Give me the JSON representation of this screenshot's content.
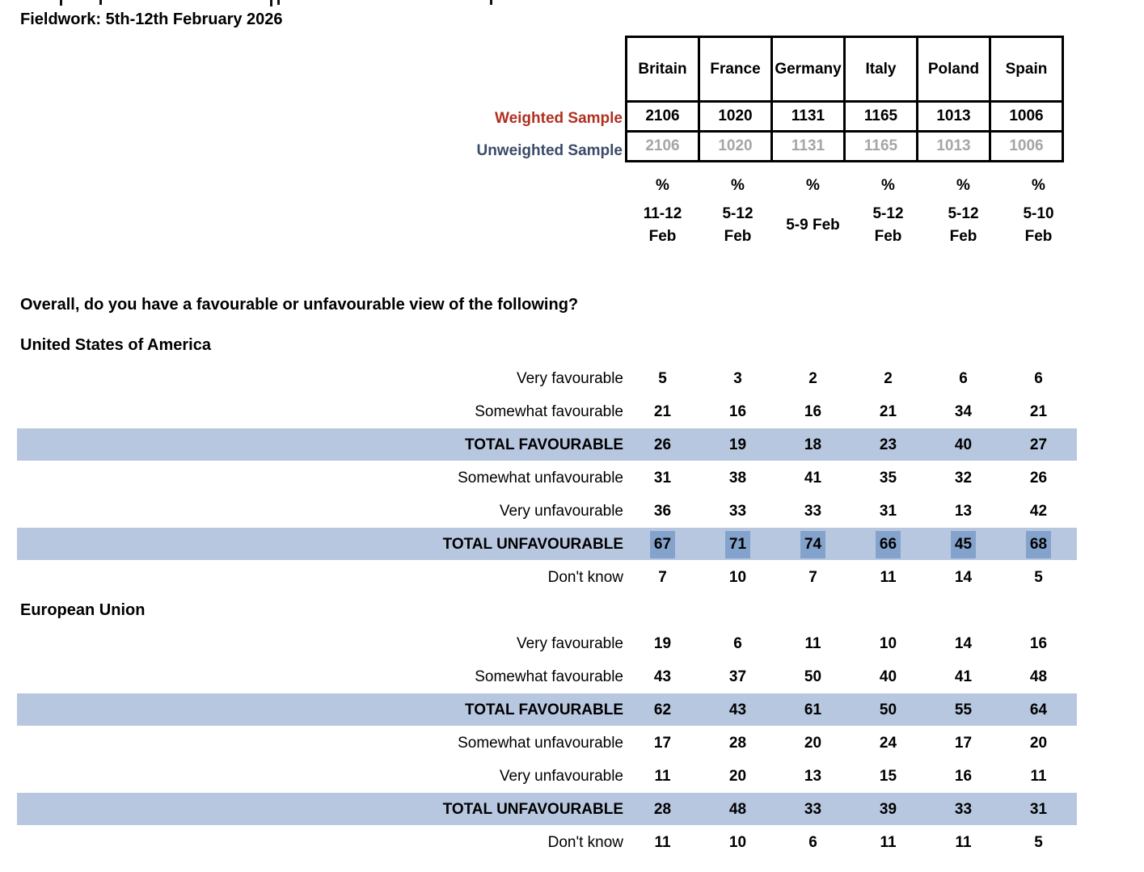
{
  "header": {
    "fieldwork": "Fieldwork: 5th-12th February 2026"
  },
  "sample_table": {
    "columns": [
      "Britain",
      "France",
      "Germany",
      "Italy",
      "Poland",
      "Spain"
    ],
    "weighted_label": "Weighted Sample",
    "unweighted_label": "Unweighted Sample",
    "weighted": [
      "2106",
      "1020",
      "1131",
      "1165",
      "1013",
      "1006"
    ],
    "unweighted": [
      "2106",
      "1020",
      "1131",
      "1165",
      "1013",
      "1006"
    ],
    "percent_row": [
      "%",
      "%",
      "%",
      "%",
      "%",
      "%"
    ],
    "dates": [
      "11-12 Feb",
      "5-12 Feb",
      "5-9 Feb",
      "5-12 Feb",
      "5-12 Feb",
      "5-10 Feb"
    ],
    "dates_two_line": [
      true,
      true,
      false,
      true,
      true,
      true
    ]
  },
  "question": "Overall, do you have a favourable or unfavourable view of the following?",
  "sections": [
    {
      "title": "United States of America",
      "rows": [
        {
          "label": "Very favourable",
          "values": [
            "5",
            "3",
            "2",
            "2",
            "6",
            "6"
          ],
          "type": "normal"
        },
        {
          "label": "Somewhat favourable",
          "values": [
            "21",
            "16",
            "16",
            "21",
            "34",
            "21"
          ],
          "type": "normal"
        },
        {
          "label": "TOTAL FAVOURABLE",
          "values": [
            "26",
            "19",
            "18",
            "23",
            "40",
            "27"
          ],
          "type": "total"
        },
        {
          "label": "Somewhat unfavourable",
          "values": [
            "31",
            "38",
            "41",
            "35",
            "32",
            "26"
          ],
          "type": "normal"
        },
        {
          "label": "Very unfavourable",
          "values": [
            "36",
            "33",
            "33",
            "31",
            "13",
            "42"
          ],
          "type": "normal"
        },
        {
          "label": "TOTAL UNFAVOURABLE",
          "values": [
            "67",
            "71",
            "74",
            "66",
            "45",
            "68"
          ],
          "type": "total-highlight"
        },
        {
          "label": "Don't know",
          "values": [
            "7",
            "10",
            "7",
            "11",
            "14",
            "5"
          ],
          "type": "normal"
        }
      ]
    },
    {
      "title": "European Union",
      "rows": [
        {
          "label": "Very favourable",
          "values": [
            "19",
            "6",
            "11",
            "10",
            "14",
            "16"
          ],
          "type": "normal"
        },
        {
          "label": "Somewhat favourable",
          "values": [
            "43",
            "37",
            "50",
            "40",
            "41",
            "48"
          ],
          "type": "normal"
        },
        {
          "label": "TOTAL FAVOURABLE",
          "values": [
            "62",
            "43",
            "61",
            "50",
            "55",
            "64"
          ],
          "type": "total"
        },
        {
          "label": "Somewhat unfavourable",
          "values": [
            "17",
            "28",
            "20",
            "24",
            "17",
            "20"
          ],
          "type": "normal"
        },
        {
          "label": "Very unfavourable",
          "values": [
            "11",
            "20",
            "13",
            "15",
            "16",
            "11"
          ],
          "type": "normal"
        },
        {
          "label": "TOTAL UNFAVOURABLE",
          "values": [
            "28",
            "48",
            "33",
            "39",
            "33",
            "31"
          ],
          "type": "total"
        },
        {
          "label": "Don't know",
          "values": [
            "11",
            "10",
            "6",
            "11",
            "11",
            "5"
          ],
          "type": "normal"
        }
      ]
    }
  ],
  "colors": {
    "band_blue": "#B8C7E0",
    "highlight_blue": "#84A3CC",
    "weighted_red": "#B0301F",
    "unweighted_navy": "#3B4A68",
    "unweighted_gray": "#A6A6A6"
  }
}
